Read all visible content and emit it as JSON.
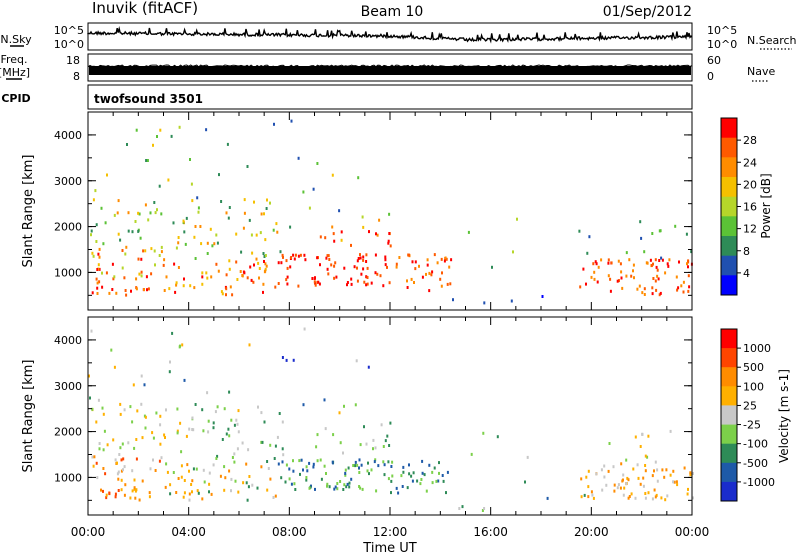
{
  "header": {
    "station": "Inuvik (fitACF)",
    "beam": "Beam 10",
    "date": "01/Sep/2012"
  },
  "side_labels": {
    "nsky": "N.Sky",
    "freq_line1": "Freq.",
    "freq_line2": "[MHz]",
    "cpid": "CPID",
    "nsearch": "N.Search",
    "nave": "Nave"
  },
  "mode_label": "twofsound 3501",
  "colors": {
    "trace": "#000000",
    "power_scale": [
      "#0000ff",
      "#2050b0",
      "#2e8b57",
      "#5bc236",
      "#b6d62a",
      "#f5c000",
      "#ff8c00",
      "#ff5a00",
      "#ff0000"
    ],
    "velocity_scale": [
      "#ff0000",
      "#ff4500",
      "#ff8c00",
      "#ffb000",
      "#c8c8c8",
      "#7cd04a",
      "#2e8b57",
      "#1e5aa8",
      "#1a2ccc"
    ]
  },
  "chart_data": [
    {
      "type": "line",
      "name": "noise-panel",
      "y_tick_labels_left": [
        "10^5",
        "10^0"
      ],
      "y_tick_labels_right": [
        "10^5",
        "10^0"
      ]
    },
    {
      "type": "line",
      "name": "frequency-panel",
      "y_tick_labels_left": [
        "18",
        "8"
      ],
      "y_tick_labels_right": [
        "60",
        "0"
      ],
      "freq_range": [
        8,
        18
      ],
      "nave_range": [
        0,
        60
      ]
    },
    {
      "type": "heatmap",
      "name": "power-panel",
      "ylabel": "Slant Range [km]",
      "yticks": [
        1000,
        2000,
        3000,
        4000
      ],
      "ylim": [
        180,
        4500
      ],
      "xlim_hours": [
        0,
        24
      ],
      "colorbar": {
        "label": "Power [dB]",
        "ticks": [
          "28",
          "24",
          "20",
          "16",
          "12",
          "8",
          "4"
        ],
        "range": [
          0,
          30
        ]
      }
    },
    {
      "type": "heatmap",
      "name": "velocity-panel",
      "ylabel": "Slant Range [km]",
      "yticks": [
        1000,
        2000,
        3000,
        4000
      ],
      "ylim": [
        180,
        4500
      ],
      "xlim_hours": [
        0,
        24
      ],
      "xlabel": "Time UT",
      "xtick_labels": [
        "00:00",
        "04:00",
        "08:00",
        "12:00",
        "16:00",
        "20:00",
        "00:00"
      ],
      "colorbar": {
        "label": "Velocity [m s-1]",
        "ticks": [
          "1000",
          "500",
          "100",
          "25",
          "-25",
          "-100",
          "-500",
          "-1000"
        ]
      }
    }
  ]
}
